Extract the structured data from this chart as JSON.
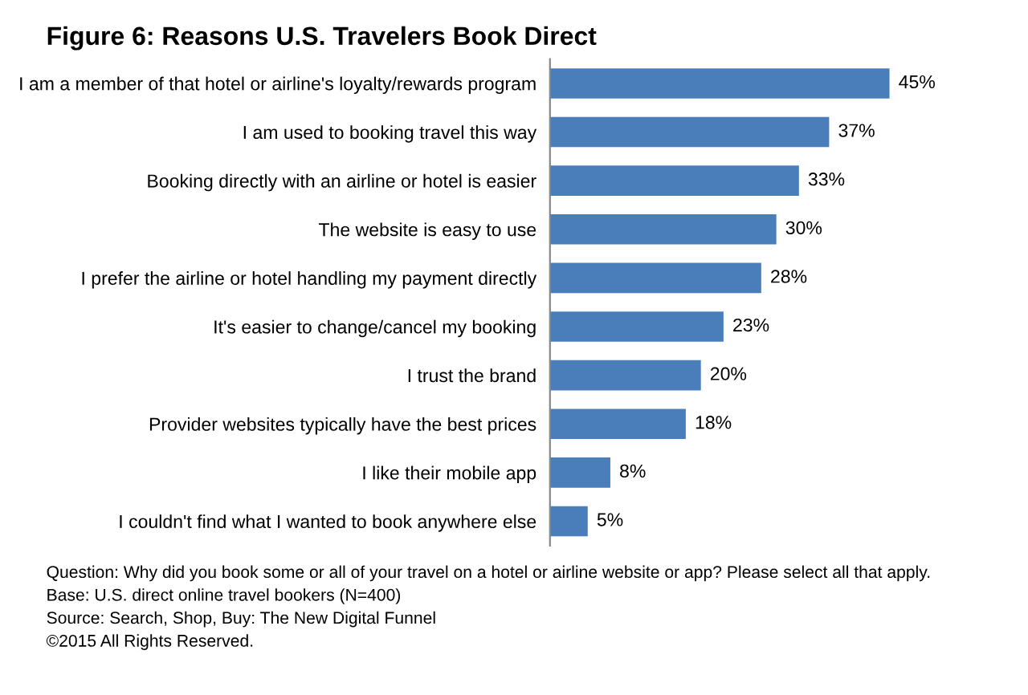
{
  "chart_data": {
    "type": "bar",
    "orientation": "horizontal",
    "title": "Figure 6: Reasons U.S. Travelers Book Direct",
    "categories": [
      "I am a member of that hotel or airline's loyalty/rewards program",
      "I am used to booking travel this way",
      "Booking directly with an airline or hotel is easier",
      "The website is easy to use",
      "I prefer the airline or hotel handling my payment directly",
      "It's easier to change/cancel my booking",
      "I trust the brand",
      "Provider websites typically have the best prices",
      "I like their mobile app",
      "I couldn't find what I wanted to book anywhere else"
    ],
    "values": [
      45,
      37,
      33,
      30,
      28,
      23,
      20,
      18,
      8,
      5
    ],
    "value_labels": [
      "45%",
      "37%",
      "33%",
      "30%",
      "28%",
      "23%",
      "20%",
      "18%",
      "8%",
      "5%"
    ],
    "color": "#4a7ebb",
    "grid": false,
    "legend": false,
    "annotations": [
      "Question: Why did you book some or all of your travel on a hotel or airline website or app? Please select all that apply.",
      "Base: U.S. direct online travel bookers (N=400)",
      "Source: Search, Shop, Buy: The New Digital Funnel",
      "©2015 All Rights Reserved."
    ]
  }
}
